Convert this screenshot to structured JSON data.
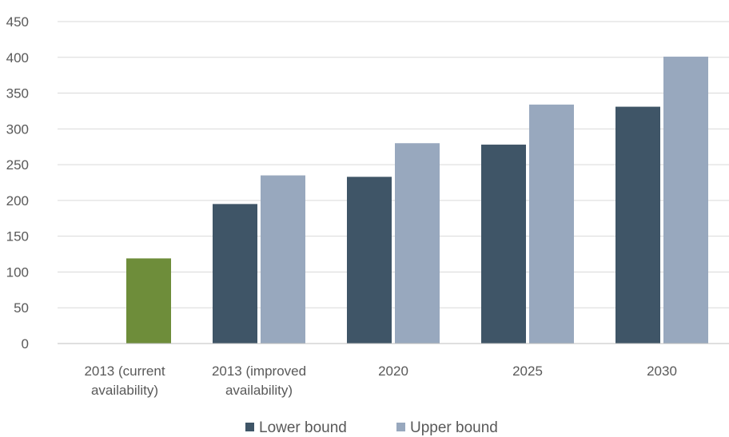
{
  "chart_data": {
    "type": "bar",
    "title": "",
    "xlabel": "",
    "ylabel": "",
    "ylim": [
      0,
      450
    ],
    "yticks": [
      "0",
      "50",
      "100",
      "150",
      "200",
      "250",
      "300",
      "350",
      "400",
      "450"
    ],
    "grid": true,
    "legend_position": "bottom",
    "categories": [
      [
        "2013 (current",
        "availability)"
      ],
      [
        "2013 (improved",
        "availability)"
      ],
      [
        "2020"
      ],
      [
        "2025"
      ],
      [
        "2030"
      ]
    ],
    "series": [
      {
        "name": "Lower bound",
        "color": "#3f5567",
        "values": [
          null,
          195,
          233,
          278,
          331
        ]
      },
      {
        "name": "Upper bound",
        "color": "#98a8be",
        "values": [
          119,
          235,
          280,
          334,
          401
        ]
      }
    ],
    "highlight": {
      "category_index": 0,
      "series_index": 1,
      "color": "#6e8d3a"
    },
    "legend": [
      "Lower bound",
      "Upper bound"
    ]
  }
}
